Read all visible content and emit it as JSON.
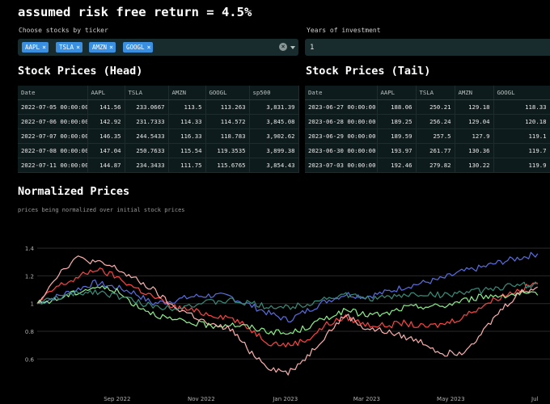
{
  "header": {
    "risk_title": "assumed risk free return = 4.5%"
  },
  "ticker_select": {
    "label": "Choose stocks by ticker",
    "chips": [
      "AAPL",
      "TSLA",
      "AMZN",
      "GOOGL"
    ],
    "remove_glyph": "×",
    "clear_glyph": "×"
  },
  "years": {
    "label": "Years of investment",
    "value": "1"
  },
  "head_table": {
    "title": "Stock Prices (Head)",
    "columns": [
      "Date",
      "AAPL",
      "TSLA",
      "AMZN",
      "GOOGL",
      "sp500"
    ],
    "rows": [
      [
        "2022-07-05 00:00:00",
        "141.56",
        "233.0667",
        "113.5",
        "113.263",
        "3,831.39"
      ],
      [
        "2022-07-06 00:00:00",
        "142.92",
        "231.7333",
        "114.33",
        "114.572",
        "3,845.08"
      ],
      [
        "2022-07-07 00:00:00",
        "146.35",
        "244.5433",
        "116.33",
        "118.783",
        "3,902.62"
      ],
      [
        "2022-07-08 00:00:00",
        "147.04",
        "250.7633",
        "115.54",
        "119.3535",
        "3,899.38"
      ],
      [
        "2022-07-11 00:00:00",
        "144.87",
        "234.3433",
        "111.75",
        "115.6765",
        "3,854.43"
      ]
    ]
  },
  "tail_table": {
    "title": "Stock Prices (Tail)",
    "columns": [
      "Date",
      "AAPL",
      "TSLA",
      "AMZN",
      "GOOGL"
    ],
    "rows": [
      [
        "2023-06-27 00:00:00",
        "188.06",
        "250.21",
        "129.18",
        "118.33"
      ],
      [
        "2023-06-28 00:00:00",
        "189.25",
        "256.24",
        "129.04",
        "120.18"
      ],
      [
        "2023-06-29 00:00:00",
        "189.59",
        "257.5",
        "127.9",
        "119.1"
      ],
      [
        "2023-06-30 00:00:00",
        "193.97",
        "261.77",
        "130.36",
        "119.7"
      ],
      [
        "2023-07-03 00:00:00",
        "192.46",
        "279.82",
        "130.22",
        "119.9"
      ]
    ]
  },
  "normalized": {
    "title": "Normalized Prices",
    "caption": "prices being normalized over initial stock prices"
  },
  "chart_data": {
    "type": "line",
    "title": "",
    "xlabel": "",
    "ylabel": "",
    "x": [
      "2022-07-05",
      "2022-07-19",
      "2022-08-02",
      "2022-08-16",
      "2022-08-30",
      "2022-09-13",
      "2022-09-27",
      "2022-10-11",
      "2022-10-25",
      "2022-11-08",
      "2022-11-22",
      "2022-12-06",
      "2022-12-20",
      "2023-01-03",
      "2023-01-17",
      "2023-01-31",
      "2023-02-14",
      "2023-02-28",
      "2023-03-14",
      "2023-03-28",
      "2023-04-11",
      "2023-04-25",
      "2023-05-09",
      "2023-05-23",
      "2023-06-06",
      "2023-06-20",
      "2023-07-03"
    ],
    "x_ticks": [
      "Sep 2022",
      "Nov 2022",
      "Jan 2023",
      "Mar 2023",
      "May 2023",
      "Jul"
    ],
    "y_ticks": [
      "0.6",
      "0.8",
      "1",
      "1.2",
      "1.4"
    ],
    "ylim": [
      0.45,
      1.5
    ],
    "grid": true,
    "series": [
      {
        "color": "#5b6ee0",
        "values": [
          1.0,
          1.05,
          1.1,
          1.15,
          1.12,
          1.08,
          1.0,
          1.02,
          1.05,
          1.06,
          1.05,
          0.99,
          0.93,
          0.88,
          0.95,
          1.02,
          1.07,
          1.05,
          1.08,
          1.12,
          1.15,
          1.18,
          1.23,
          1.26,
          1.3,
          1.33,
          1.36
        ]
      },
      {
        "color": "#ff4444",
        "values": [
          1.0,
          1.12,
          1.18,
          1.25,
          1.2,
          1.12,
          1.05,
          0.98,
          0.95,
          0.92,
          0.9,
          0.82,
          0.72,
          0.7,
          0.74,
          0.85,
          0.9,
          0.85,
          0.84,
          0.86,
          0.83,
          0.85,
          0.9,
          0.98,
          1.05,
          1.1,
          1.15
        ]
      },
      {
        "color": "#8ef08e",
        "values": [
          1.0,
          1.03,
          1.08,
          1.12,
          1.1,
          1.0,
          0.93,
          0.88,
          0.86,
          0.84,
          0.85,
          0.83,
          0.8,
          0.78,
          0.83,
          0.9,
          0.95,
          0.92,
          0.92,
          0.97,
          0.98,
          0.98,
          1.02,
          1.05,
          1.06,
          1.07,
          1.06
        ]
      },
      {
        "color": "#ffb0b0",
        "values": [
          1.0,
          1.2,
          1.33,
          1.3,
          1.26,
          1.18,
          1.1,
          0.98,
          0.92,
          0.84,
          0.82,
          0.66,
          0.54,
          0.5,
          0.62,
          0.78,
          0.92,
          0.82,
          0.8,
          0.76,
          0.72,
          0.64,
          0.65,
          0.78,
          0.95,
          1.08,
          1.12
        ]
      },
      {
        "color": "#3a8d7a",
        "values": [
          1.0,
          1.04,
          1.07,
          1.09,
          1.06,
          1.02,
          0.98,
          0.97,
          0.99,
          1.01,
          1.02,
          1.0,
          0.98,
          0.97,
          1.0,
          1.04,
          1.06,
          1.04,
          1.04,
          1.06,
          1.07,
          1.06,
          1.08,
          1.09,
          1.12,
          1.13,
          1.14
        ]
      }
    ]
  }
}
